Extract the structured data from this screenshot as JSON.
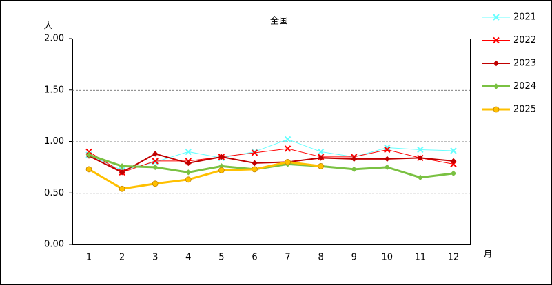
{
  "chart_data": {
    "type": "line",
    "title": "全国",
    "y_label": "人",
    "x_label": "月",
    "categories": [
      "1",
      "2",
      "3",
      "4",
      "5",
      "6",
      "7",
      "8",
      "9",
      "10",
      "11",
      "12"
    ],
    "ylim": [
      0,
      2
    ],
    "yticks": [
      {
        "value": 0,
        "label": "0.00"
      },
      {
        "value": 0.5,
        "label": "0.50"
      },
      {
        "value": 1,
        "label": "1.00"
      },
      {
        "value": 1.5,
        "label": "1.50"
      },
      {
        "value": 2,
        "label": "2.00"
      }
    ],
    "grid": true,
    "legend": "right",
    "series": [
      {
        "name": "2021",
        "color": "#66ffff",
        "marker": "x",
        "values": [
          0.87,
          0.72,
          0.8,
          0.9,
          0.84,
          0.9,
          1.02,
          0.9,
          0.85,
          0.94,
          0.92,
          0.91
        ]
      },
      {
        "name": "2022",
        "color": "#ff0000",
        "marker": "x",
        "values": [
          0.9,
          0.7,
          0.81,
          0.81,
          0.85,
          0.89,
          0.93,
          0.85,
          0.85,
          0.92,
          0.84,
          0.78
        ]
      },
      {
        "name": "2023",
        "color": "#c00000",
        "marker": "diamond",
        "values": [
          0.86,
          0.7,
          0.88,
          0.79,
          0.85,
          0.79,
          0.8,
          0.84,
          0.83,
          0.83,
          0.84,
          0.81
        ]
      },
      {
        "name": "2024",
        "color": "#7ac142",
        "marker": "diamond",
        "values": [
          0.87,
          0.76,
          0.75,
          0.7,
          0.76,
          0.73,
          0.78,
          0.76,
          0.73,
          0.75,
          0.65,
          0.69
        ]
      },
      {
        "name": "2025",
        "color": "#ffc000",
        "marker": "circle",
        "values": [
          0.73,
          0.54,
          0.59,
          0.63,
          0.72,
          0.73,
          0.8,
          0.76,
          null,
          null,
          null,
          null
        ]
      }
    ]
  }
}
